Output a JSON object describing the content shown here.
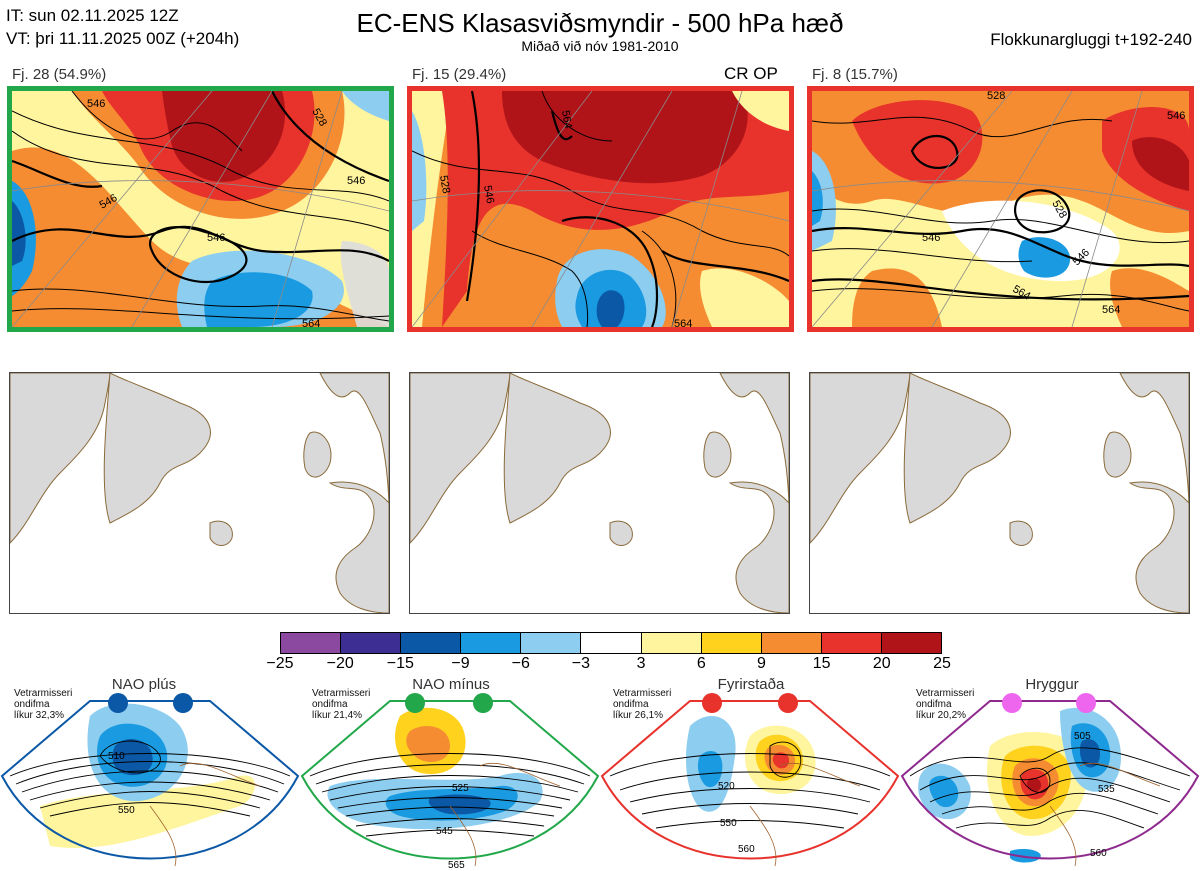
{
  "header": {
    "it_line": "IT: sun 02.11.2025 12Z",
    "vt_line": "VT: þri 11.11.2025 00Z  (+204h)",
    "title": "EC-ENS Klasasviðsmyndir - 500 hPa hæð",
    "subtitle": "Miðað við nóv 1981-2010",
    "window": "Flokkunargluggi t+192-240"
  },
  "clusters": [
    {
      "label": "Fj. 28 (54.9%)",
      "border_color": "#22a84a",
      "extra": "",
      "contours": [
        "546",
        "546",
        "546",
        "528",
        "546",
        "564"
      ]
    },
    {
      "label": "Fj. 15 (29.4%)",
      "border_color": "#e8322c",
      "extra": "CR OP",
      "contours": [
        "564",
        "528",
        "546",
        "564"
      ]
    },
    {
      "label": "Fj. 8 (15.7%)",
      "border_color": "#e8322c",
      "extra": "",
      "contours": [
        "546",
        "528",
        "528",
        "546",
        "546",
        "564",
        "564"
      ]
    }
  ],
  "colorbar": {
    "ticks": [
      "−25",
      "−20",
      "−15",
      "−9",
      "−6",
      "−3",
      "3",
      "6",
      "9",
      "15",
      "20",
      "25"
    ],
    "colors": [
      "#8b4aa0",
      "#3c2e92",
      "#0b58a6",
      "#1a9ae0",
      "#8ccdf0",
      "#ffffff",
      "#fff59e",
      "#ffd21e",
      "#f58c32",
      "#e8322c",
      "#b01419"
    ]
  },
  "regimes": [
    {
      "name": "NAO plús",
      "prob_lines": [
        "Vetrarmisseri",
        "ondifma",
        "líkur 32,3%"
      ],
      "color": "#0b58a6",
      "contours": [
        "510",
        "550"
      ]
    },
    {
      "name": "NAO mínus",
      "prob_lines": [
        "Vetrarmisseri",
        "ondifma",
        "líkur 21,4%"
      ],
      "color": "#22a84a",
      "contours": [
        "525",
        "545",
        "565"
      ]
    },
    {
      "name": "Fyrirstaða",
      "prob_lines": [
        "Vetrarmisseri",
        "ondifma",
        "líkur 26,1%"
      ],
      "color": "#e8322c",
      "contours": [
        "520",
        "550",
        "560"
      ]
    },
    {
      "name": "Hryggur",
      "prob_lines": [
        "Vetrarmisseri",
        "ondifma",
        "líkur 20,2%"
      ],
      "color": "#8e2a8e",
      "contours": [
        "505",
        "535",
        "560"
      ]
    }
  ],
  "icons": {
    "regime_dot": "filled-circle",
    "coastline": "coastline-map"
  }
}
